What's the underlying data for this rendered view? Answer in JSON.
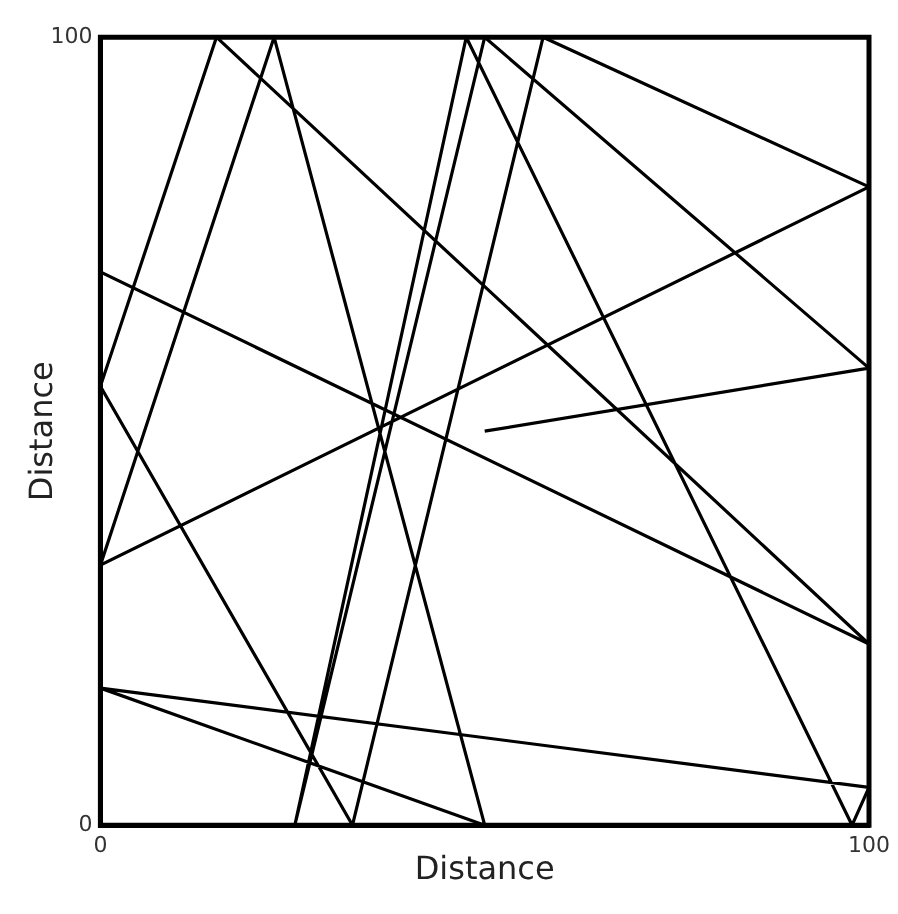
{
  "chart_data": {
    "type": "line",
    "xlabel": "Distance",
    "ylabel": "Distance",
    "series": [
      {
        "color": "#000000",
        "x": [
          50,
          100,
          50,
          25.3,
          47.6,
          97.8,
          100,
          0,
          50,
          22.6,
          0,
          100,
          57.6,
          32.8,
          0,
          15.1,
          100,
          0
        ],
        "values": [
          50,
          58,
          100,
          0,
          100,
          0,
          4.8,
          17.4,
          0,
          100,
          33,
          81,
          100,
          0,
          55.7,
          100,
          23,
          70.2
        ]
      }
    ],
    "xlim": [
      0,
      100
    ],
    "ylim": [
      0,
      100
    ],
    "xticks": [
      0,
      100
    ],
    "yticks": [
      0,
      100
    ],
    "legend": false,
    "marker": "none",
    "line_style": "solid"
  }
}
